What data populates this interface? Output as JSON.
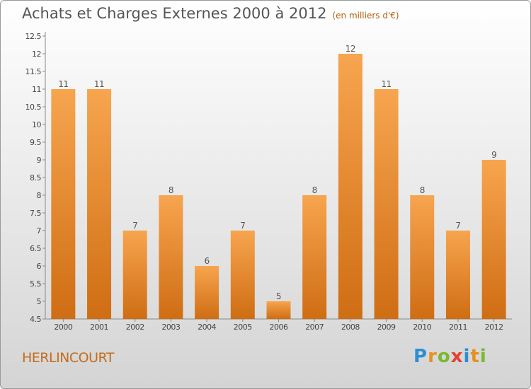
{
  "header": {
    "title": "Achats et Charges Externes 2000 à 2012",
    "unit": "(en milliers d'€)"
  },
  "footer": {
    "commune": "HERLINCOURT",
    "logo_letters": [
      "P",
      "r",
      "o",
      "x",
      "i",
      "t",
      "i"
    ]
  },
  "colors": {
    "bar_top": "#f7a54f",
    "bar_bottom": "#cf6d13",
    "axis_tick_label": "#444444",
    "commune_text": "#c36d1c"
  },
  "chart_data": {
    "type": "bar",
    "title": "Achats et Charges Externes 2000 à 2012",
    "subtitle": "(en milliers d'€)",
    "xlabel": "",
    "ylabel": "",
    "categories": [
      "2000",
      "2001",
      "2002",
      "2003",
      "2004",
      "2005",
      "2006",
      "2007",
      "2008",
      "2009",
      "2010",
      "2011",
      "2012"
    ],
    "values": [
      11,
      11,
      7,
      8,
      6,
      7,
      5,
      8,
      12,
      11,
      8,
      7,
      9
    ],
    "data_labels": [
      "11",
      "11",
      "7",
      "8",
      "6",
      "7",
      "5",
      "8",
      "12",
      "11",
      "8",
      "7",
      "9"
    ],
    "ylim": [
      4.5,
      12.5
    ],
    "yticks": [
      "4.5",
      "5",
      "5.5",
      "6",
      "6.5",
      "7",
      "7.5",
      "8",
      "8.5",
      "9",
      "9.5",
      "10",
      "10.5",
      "11",
      "11.5",
      "12",
      "12.5"
    ],
    "grid": false,
    "legend": "none"
  }
}
